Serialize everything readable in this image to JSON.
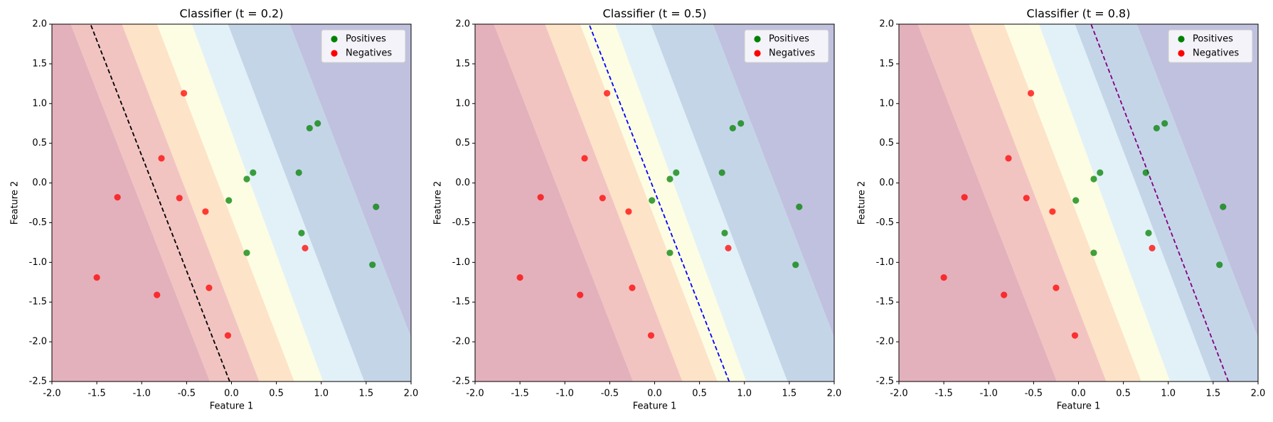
{
  "chart_data": [
    {
      "type": "scatter",
      "title": "Classifier (t = 0.2)",
      "x_label": "Feature 1",
      "y_label": "Feature 2",
      "xlim": [
        -2,
        2
      ],
      "ylim": [
        -2.5,
        2
      ],
      "xticks": [
        {
          "value": -2,
          "label": "-2.0"
        },
        {
          "value": -1.5,
          "label": "-1.5"
        },
        {
          "value": -1,
          "label": "-1.0"
        },
        {
          "value": -0.5,
          "label": "-0.5"
        },
        {
          "value": 0,
          "label": "0.0"
        },
        {
          "value": 0.5,
          "label": "0.5"
        },
        {
          "value": 1,
          "label": "1.0"
        },
        {
          "value": 1.5,
          "label": "1.5"
        },
        {
          "value": 2,
          "label": "2.0"
        }
      ],
      "yticks": [
        {
          "value": -2.5,
          "label": "-2.5"
        },
        {
          "value": -2,
          "label": "-2.0"
        },
        {
          "value": -1.5,
          "label": "-1.5"
        },
        {
          "value": -1,
          "label": "-1.0"
        },
        {
          "value": -0.5,
          "label": "-0.5"
        },
        {
          "value": 0,
          "label": "0.0"
        },
        {
          "value": 0.5,
          "label": "0.5"
        },
        {
          "value": 1,
          "label": "1.0"
        },
        {
          "value": 1.5,
          "label": "1.5"
        },
        {
          "value": 2,
          "label": "2.0"
        }
      ],
      "band_colors": [
        "#e3b1bb",
        "#f1c4c1",
        "#fde3c8",
        "#fdfde3",
        "#e2f1f7",
        "#c5d5e8",
        "#c0c1de"
      ],
      "boundaries": [
        {
          "x": [
            -0.24,
            -1.79
          ]
        },
        {
          "x": [
            0.31,
            -1.22
          ]
        },
        {
          "x": [
            0.7,
            -0.83
          ]
        },
        {
          "x": [
            1.02,
            -0.44
          ]
        },
        {
          "x": [
            1.48,
            -0.04
          ]
        },
        {
          "x": [
            2.19,
            0.65
          ]
        }
      ],
      "decision_line": {
        "x": [
          -0.02,
          -1.57
        ],
        "color": "#000000"
      },
      "legend": "upper right",
      "series": [
        {
          "name": "Positives",
          "color": "#008000",
          "x": [
            0.17,
            0.24,
            -0.03,
            0.17,
            0.75,
            0.78,
            0.87,
            0.96,
            1.61,
            1.57
          ],
          "y": [
            0.05,
            0.13,
            -0.22,
            -0.88,
            0.13,
            -0.63,
            0.69,
            0.75,
            -0.3,
            -1.03
          ]
        },
        {
          "name": "Negatives",
          "color": "#ff0000",
          "x": [
            -0.53,
            -0.78,
            -1.27,
            -0.58,
            -0.29,
            -1.5,
            -0.83,
            -0.25,
            -0.04,
            0.82
          ],
          "y": [
            1.13,
            0.31,
            -0.18,
            -0.19,
            -0.36,
            -1.19,
            -1.41,
            -1.32,
            -1.92,
            -0.82
          ]
        }
      ]
    },
    {
      "type": "scatter",
      "title": "Classifier (t = 0.5)",
      "x_label": "Feature 1",
      "y_label": "Feature 2",
      "xlim": [
        -2,
        2
      ],
      "ylim": [
        -2.5,
        2
      ],
      "xticks": [
        {
          "value": -2,
          "label": "-2.0"
        },
        {
          "value": -1.5,
          "label": "-1.5"
        },
        {
          "value": -1,
          "label": "-1.0"
        },
        {
          "value": -0.5,
          "label": "-0.5"
        },
        {
          "value": 0,
          "label": "0.0"
        },
        {
          "value": 0.5,
          "label": "0.5"
        },
        {
          "value": 1,
          "label": "1.0"
        },
        {
          "value": 1.5,
          "label": "1.5"
        },
        {
          "value": 2,
          "label": "2.0"
        }
      ],
      "yticks": [
        {
          "value": -2.5,
          "label": "-2.5"
        },
        {
          "value": -2,
          "label": "-2.0"
        },
        {
          "value": -1.5,
          "label": "-1.5"
        },
        {
          "value": -1,
          "label": "-1.0"
        },
        {
          "value": -0.5,
          "label": "-0.5"
        },
        {
          "value": 0,
          "label": "0.0"
        },
        {
          "value": 0.5,
          "label": "0.5"
        },
        {
          "value": 1,
          "label": "1.0"
        },
        {
          "value": 1.5,
          "label": "1.5"
        },
        {
          "value": 2,
          "label": "2.0"
        }
      ],
      "band_colors": [
        "#e3b1bb",
        "#f1c4c1",
        "#fde3c8",
        "#fdfde3",
        "#e2f1f7",
        "#c5d5e8",
        "#c0c1de"
      ],
      "boundaries": [
        {
          "x": [
            -0.24,
            -1.79
          ]
        },
        {
          "x": [
            0.31,
            -1.22
          ]
        },
        {
          "x": [
            0.7,
            -0.83
          ]
        },
        {
          "x": [
            1.02,
            -0.44
          ]
        },
        {
          "x": [
            1.48,
            -0.04
          ]
        },
        {
          "x": [
            2.19,
            0.65
          ]
        }
      ],
      "decision_line": {
        "x": [
          0.83,
          -0.73
        ],
        "color": "#0000ff"
      },
      "legend": "upper right",
      "series": [
        {
          "name": "Positives",
          "color": "#008000",
          "x": [
            0.17,
            0.24,
            -0.03,
            0.17,
            0.75,
            0.78,
            0.87,
            0.96,
            1.61,
            1.57
          ],
          "y": [
            0.05,
            0.13,
            -0.22,
            -0.88,
            0.13,
            -0.63,
            0.69,
            0.75,
            -0.3,
            -1.03
          ]
        },
        {
          "name": "Negatives",
          "color": "#ff0000",
          "x": [
            -0.53,
            -0.78,
            -1.27,
            -0.58,
            -0.29,
            -1.5,
            -0.83,
            -0.25,
            -0.04,
            0.82
          ],
          "y": [
            1.13,
            0.31,
            -0.18,
            -0.19,
            -0.36,
            -1.19,
            -1.41,
            -1.32,
            -1.92,
            -0.82
          ]
        }
      ]
    },
    {
      "type": "scatter",
      "title": "Classifier (t = 0.8)",
      "x_label": "Feature 1",
      "y_label": "Feature 2",
      "xlim": [
        -2,
        2
      ],
      "ylim": [
        -2.5,
        2
      ],
      "xticks": [
        {
          "value": -2,
          "label": "-2.0"
        },
        {
          "value": -1.5,
          "label": "-1.5"
        },
        {
          "value": -1,
          "label": "-1.0"
        },
        {
          "value": -0.5,
          "label": "-0.5"
        },
        {
          "value": 0,
          "label": "0.0"
        },
        {
          "value": 0.5,
          "label": "0.5"
        },
        {
          "value": 1,
          "label": "1.0"
        },
        {
          "value": 1.5,
          "label": "1.5"
        },
        {
          "value": 2,
          "label": "2.0"
        }
      ],
      "yticks": [
        {
          "value": -2.5,
          "label": "-2.5"
        },
        {
          "value": -2,
          "label": "-2.0"
        },
        {
          "value": -1.5,
          "label": "-1.5"
        },
        {
          "value": -1,
          "label": "-1.0"
        },
        {
          "value": -0.5,
          "label": "-0.5"
        },
        {
          "value": 0,
          "label": "0.0"
        },
        {
          "value": 0.5,
          "label": "0.5"
        },
        {
          "value": 1,
          "label": "1.0"
        },
        {
          "value": 1.5,
          "label": "1.5"
        },
        {
          "value": 2,
          "label": "2.0"
        }
      ],
      "band_colors": [
        "#e3b1bb",
        "#f1c4c1",
        "#fde3c8",
        "#fdfde3",
        "#e2f1f7",
        "#c5d5e8",
        "#c0c1de"
      ],
      "boundaries": [
        {
          "x": [
            -0.24,
            -1.79
          ]
        },
        {
          "x": [
            0.31,
            -1.22
          ]
        },
        {
          "x": [
            0.7,
            -0.83
          ]
        },
        {
          "x": [
            1.02,
            -0.44
          ]
        },
        {
          "x": [
            1.48,
            -0.04
          ]
        },
        {
          "x": [
            2.19,
            0.65
          ]
        }
      ],
      "decision_line": {
        "x": [
          1.67,
          0.14
        ],
        "color": "#800080"
      },
      "legend": "upper right",
      "series": [
        {
          "name": "Positives",
          "color": "#008000",
          "x": [
            0.17,
            0.24,
            -0.03,
            0.17,
            0.75,
            0.78,
            0.87,
            0.96,
            1.61,
            1.57
          ],
          "y": [
            0.05,
            0.13,
            -0.22,
            -0.88,
            0.13,
            -0.63,
            0.69,
            0.75,
            -0.3,
            -1.03
          ]
        },
        {
          "name": "Negatives",
          "color": "#ff0000",
          "x": [
            -0.53,
            -0.78,
            -1.27,
            -0.58,
            -0.29,
            -1.5,
            -0.83,
            -0.25,
            -0.04,
            0.82
          ],
          "y": [
            1.13,
            0.31,
            -0.18,
            -0.19,
            -0.36,
            -1.19,
            -1.41,
            -1.32,
            -1.92,
            -0.82
          ]
        }
      ]
    }
  ]
}
